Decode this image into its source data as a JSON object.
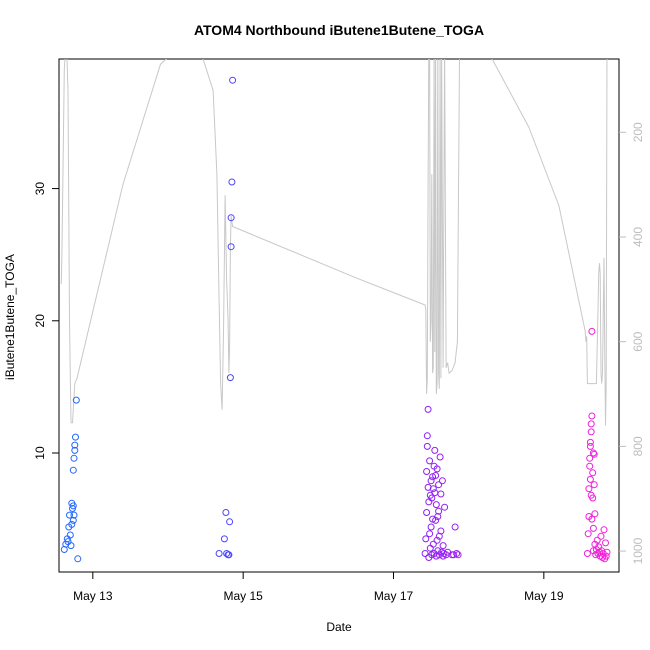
{
  "chart_data": {
    "type": "scatter",
    "title": "ATOM4 Northbound iButene1Butene_TOGA",
    "xlabel": "Date",
    "ylabel": "iButene1Butene_TOGA",
    "x_ticks": [
      "May 13",
      "May 15",
      "May 17",
      "May 19"
    ],
    "x_range_days": [
      12.55,
      20.0
    ],
    "ylim": [
      1.0,
      39.8
    ],
    "y_ticks": [
      10,
      20,
      30
    ],
    "y2_ticks": [
      200,
      400,
      600,
      800,
      1000
    ],
    "y2_range": [
      60,
      1040
    ],
    "y2_reversed": true,
    "grid": false,
    "colors": {
      "early": "#1f6bff",
      "mid": "#7a1fff",
      "late": "#ff1fd6",
      "line": "#c8c8c8"
    },
    "scatter_points": [
      [
        12.62,
        2.7
      ],
      [
        12.64,
        3.1
      ],
      [
        12.66,
        3.5
      ],
      [
        12.67,
        3.3
      ],
      [
        12.68,
        4.4
      ],
      [
        12.69,
        5.3
      ],
      [
        12.7,
        3.8
      ],
      [
        12.71,
        3.0
      ],
      [
        12.72,
        4.6
      ],
      [
        12.72,
        6.2
      ],
      [
        12.73,
        5.8
      ],
      [
        12.74,
        4.9
      ],
      [
        12.74,
        8.7
      ],
      [
        12.75,
        9.6
      ],
      [
        12.76,
        10.2
      ],
      [
        12.76,
        10.6
      ],
      [
        12.77,
        11.2
      ],
      [
        12.78,
        14.0
      ],
      [
        12.8,
        2.0
      ],
      [
        12.74,
        6.0
      ],
      [
        12.75,
        5.3
      ],
      [
        14.68,
        2.4
      ],
      [
        14.75,
        3.5
      ],
      [
        14.77,
        5.5
      ],
      [
        14.78,
        2.4
      ],
      [
        14.8,
        2.3
      ],
      [
        14.81,
        2.3
      ],
      [
        14.82,
        4.8
      ],
      [
        14.83,
        15.7
      ],
      [
        14.84,
        25.6
      ],
      [
        14.84,
        27.8
      ],
      [
        14.85,
        30.5
      ],
      [
        14.86,
        38.2
      ],
      [
        17.42,
        2.4
      ],
      [
        17.43,
        3.5
      ],
      [
        17.44,
        5.5
      ],
      [
        17.44,
        8.6
      ],
      [
        17.45,
        10.5
      ],
      [
        17.45,
        11.3
      ],
      [
        17.46,
        13.3
      ],
      [
        17.46,
        7.4
      ],
      [
        17.47,
        6.3
      ],
      [
        17.47,
        2.1
      ],
      [
        17.48,
        9.4
      ],
      [
        17.48,
        3.9
      ],
      [
        17.49,
        2.8
      ],
      [
        17.5,
        7.9
      ],
      [
        17.5,
        4.4
      ],
      [
        17.51,
        2.3
      ],
      [
        17.51,
        6.6
      ],
      [
        17.52,
        8.2
      ],
      [
        17.52,
        5.0
      ],
      [
        17.53,
        3.1
      ],
      [
        17.54,
        9.0
      ],
      [
        17.54,
        2.4
      ],
      [
        17.55,
        7.0
      ],
      [
        17.55,
        10.2
      ],
      [
        17.56,
        4.9
      ],
      [
        17.57,
        2.2
      ],
      [
        17.57,
        6.1
      ],
      [
        17.58,
        8.8
      ],
      [
        17.58,
        3.4
      ],
      [
        17.59,
        2.6
      ],
      [
        17.6,
        7.6
      ],
      [
        17.6,
        5.6
      ],
      [
        17.61,
        2.3
      ],
      [
        17.62,
        9.7
      ],
      [
        17.63,
        4.1
      ],
      [
        17.63,
        6.9
      ],
      [
        17.64,
        2.5
      ],
      [
        17.65,
        7.9
      ],
      [
        17.66,
        3.0
      ],
      [
        17.67,
        2.4
      ],
      [
        17.68,
        5.9
      ],
      [
        17.7,
        2.3
      ],
      [
        17.72,
        2.5
      ],
      [
        17.78,
        2.3
      ],
      [
        17.8,
        2.3
      ],
      [
        17.82,
        4.4
      ],
      [
        17.84,
        2.4
      ],
      [
        17.86,
        2.3
      ],
      [
        17.49,
        6.8
      ],
      [
        17.53,
        7.3
      ],
      [
        17.56,
        8.3
      ],
      [
        17.59,
        5.2
      ],
      [
        17.61,
        3.7
      ],
      [
        17.66,
        2.2
      ],
      [
        19.58,
        2.4
      ],
      [
        19.59,
        3.9
      ],
      [
        19.6,
        5.2
      ],
      [
        19.6,
        7.3
      ],
      [
        19.61,
        9.0
      ],
      [
        19.61,
        9.6
      ],
      [
        19.62,
        10.5
      ],
      [
        19.62,
        10.8
      ],
      [
        19.63,
        11.6
      ],
      [
        19.63,
        12.2
      ],
      [
        19.64,
        12.8
      ],
      [
        19.64,
        19.2
      ],
      [
        19.65,
        8.5
      ],
      [
        19.65,
        6.6
      ],
      [
        19.66,
        4.3
      ],
      [
        19.66,
        2.6
      ],
      [
        19.67,
        7.6
      ],
      [
        19.67,
        9.9
      ],
      [
        19.68,
        5.4
      ],
      [
        19.68,
        3.1
      ],
      [
        19.69,
        2.3
      ],
      [
        19.7,
        2.7
      ],
      [
        19.71,
        3.4
      ],
      [
        19.72,
        2.4
      ],
      [
        19.73,
        2.9
      ],
      [
        19.74,
        2.5
      ],
      [
        19.75,
        2.2
      ],
      [
        19.76,
        3.7
      ],
      [
        19.77,
        2.6
      ],
      [
        19.78,
        2.1
      ],
      [
        19.79,
        2.4
      ],
      [
        19.8,
        4.2
      ],
      [
        19.81,
        2.0
      ],
      [
        19.82,
        3.2
      ],
      [
        19.83,
        2.2
      ],
      [
        19.84,
        2.5
      ],
      [
        19.62,
        8.0
      ],
      [
        19.63,
        6.8
      ],
      [
        19.64,
        5.0
      ],
      [
        19.66,
        10.0
      ]
    ],
    "altitude_line": [
      [
        12.58,
        490
      ],
      [
        12.59,
        420
      ],
      [
        12.62,
        80
      ],
      [
        12.64,
        30
      ],
      [
        12.65,
        30
      ],
      [
        12.67,
        120
      ],
      [
        12.69,
        560
      ],
      [
        12.71,
        755
      ],
      [
        12.73,
        755
      ],
      [
        12.76,
        680
      ],
      [
        12.79,
        670
      ],
      [
        13.4,
        300
      ],
      [
        13.9,
        70
      ],
      [
        14.2,
        30
      ],
      [
        14.4,
        30
      ],
      [
        14.6,
        120
      ],
      [
        14.65,
        280
      ],
      [
        14.68,
        520
      ],
      [
        14.7,
        680
      ],
      [
        14.72,
        730
      ],
      [
        14.74,
        570
      ],
      [
        14.76,
        320
      ],
      [
        14.78,
        480
      ],
      [
        14.8,
        560
      ],
      [
        14.81,
        660
      ],
      [
        14.82,
        610
      ],
      [
        14.83,
        420
      ],
      [
        14.84,
        360
      ],
      [
        14.86,
        380
      ],
      [
        16.5,
        478
      ],
      [
        17.42,
        530
      ],
      [
        17.43,
        538
      ],
      [
        17.44,
        700
      ],
      [
        17.45,
        670
      ],
      [
        17.46,
        300
      ],
      [
        17.47,
        30
      ],
      [
        17.48,
        30
      ],
      [
        17.49,
        600
      ],
      [
        17.5,
        560
      ],
      [
        17.51,
        280
      ],
      [
        17.52,
        660
      ],
      [
        17.53,
        650
      ],
      [
        17.54,
        30
      ],
      [
        17.55,
        620
      ],
      [
        17.56,
        30
      ],
      [
        17.57,
        700
      ],
      [
        17.58,
        680
      ],
      [
        17.59,
        30
      ],
      [
        17.6,
        660
      ],
      [
        17.61,
        690
      ],
      [
        17.62,
        30
      ],
      [
        17.63,
        670
      ],
      [
        17.64,
        30
      ],
      [
        17.66,
        650
      ],
      [
        17.68,
        30
      ],
      [
        17.7,
        650
      ],
      [
        17.72,
        640
      ],
      [
        17.74,
        660
      ],
      [
        17.78,
        655
      ],
      [
        17.82,
        640
      ],
      [
        17.85,
        600
      ],
      [
        17.88,
        30
      ],
      [
        18.2,
        30
      ],
      [
        18.8,
        190
      ],
      [
        19.2,
        340
      ],
      [
        19.55,
        580
      ],
      [
        19.56,
        600
      ],
      [
        19.57,
        590
      ],
      [
        19.58,
        680
      ],
      [
        19.6,
        680
      ],
      [
        19.65,
        680
      ],
      [
        19.7,
        680
      ],
      [
        19.72,
        540
      ],
      [
        19.73,
        470
      ],
      [
        19.74,
        450
      ],
      [
        19.75,
        470
      ],
      [
        19.76,
        660
      ],
      [
        19.77,
        680
      ],
      [
        19.78,
        660
      ],
      [
        19.79,
        550
      ],
      [
        19.8,
        440
      ],
      [
        19.81,
        610
      ],
      [
        19.82,
        760
      ],
      [
        19.83,
        680
      ],
      [
        19.84,
        30
      ]
    ]
  }
}
